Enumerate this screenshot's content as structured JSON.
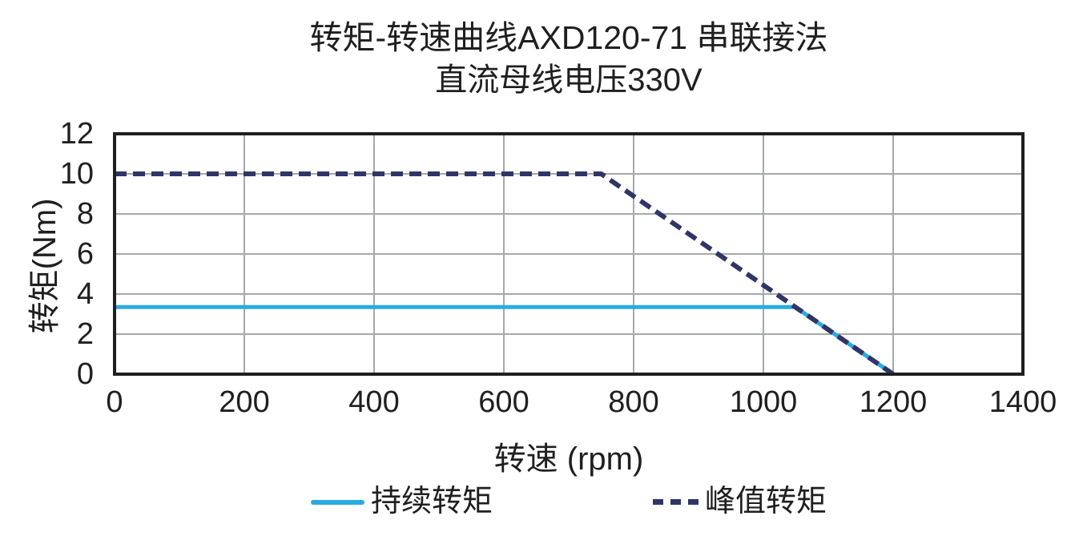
{
  "chart_data": {
    "type": "line",
    "title": "转矩-转速曲线AXD120-71 串联接法",
    "subtitle": "直流母线电压330V",
    "xlabel": "转速 (rpm)",
    "ylabel": "转矩(Nm)",
    "xlim": [
      0,
      1400
    ],
    "ylim": [
      0,
      12
    ],
    "x_ticks": [
      0,
      200,
      400,
      600,
      800,
      1000,
      1200,
      1400
    ],
    "y_ticks": [
      0,
      2,
      4,
      6,
      8,
      10,
      12
    ],
    "grid": true,
    "legend_position": "bottom",
    "colors": {
      "grid": "#A6A8AB",
      "axis_border": "#1F1F1F",
      "text": "#1F1F1F",
      "background": "#FFFFFF"
    },
    "series": [
      {
        "id": "continuous-torque",
        "name": "持续转矩",
        "line_style": "solid",
        "color": "#29ABE2",
        "stroke_width": 5,
        "points": [
          [
            0,
            3.35
          ],
          [
            1049,
            3.35
          ],
          [
            1200,
            0
          ]
        ]
      },
      {
        "id": "peak-torque",
        "name": "峰值转矩",
        "line_style": "dashed",
        "color": "#2F3567",
        "stroke_width": 6,
        "dash": [
          15,
          8
        ],
        "points": [
          [
            0,
            10
          ],
          [
            750,
            10
          ],
          [
            1200,
            0
          ]
        ]
      }
    ]
  }
}
